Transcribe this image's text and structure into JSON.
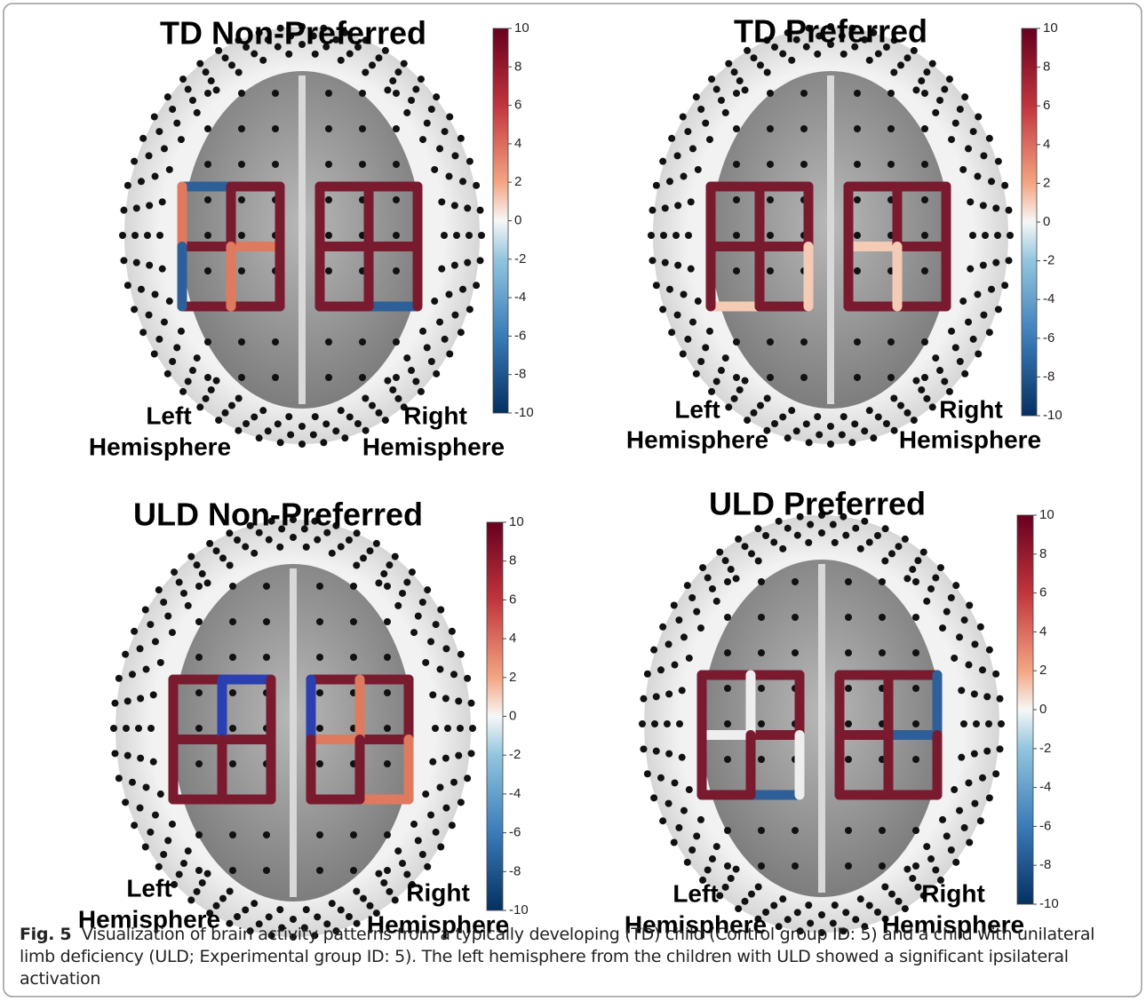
{
  "panels": [
    {
      "title": "TD Non-Preferred",
      "left_label": [
        "Left",
        "Hemisphere"
      ],
      "right_label": [
        "Right",
        "Hemisphere"
      ],
      "colorbar_ticks": [
        10,
        8,
        6,
        4,
        2,
        0,
        -2,
        -4,
        -6,
        -8,
        -10
      ]
    },
    {
      "title": "TD Preferred",
      "left_label": [
        "Left",
        "Hemisphere"
      ],
      "right_label": [
        "Right",
        "Hemisphere"
      ],
      "colorbar_ticks": [
        10,
        8,
        6,
        4,
        2,
        0,
        -2,
        -4,
        -6,
        -8,
        -10
      ]
    },
    {
      "title": "ULD Non-Preferred",
      "left_label": [
        "Left",
        "Hemisphere"
      ],
      "right_label": [
        "Right",
        "Hemisphere"
      ],
      "colorbar_ticks": [
        10,
        8,
        6,
        4,
        2,
        0,
        -2,
        -4,
        -6,
        -8,
        -10
      ]
    },
    {
      "title": "ULD Preferred",
      "left_label": [
        "Left",
        "Hemisphere"
      ],
      "right_label": [
        "Right",
        "Hemisphere"
      ],
      "colorbar_ticks": [
        10,
        8,
        6,
        4,
        2,
        0,
        -2,
        -4,
        -6,
        -8,
        -10
      ]
    }
  ],
  "caption": {
    "label": "Fig. 5",
    "text": "Visualization of brain activity patterns from a typically developing (TD) child (Control group ID: 5) and a child with unilateral limb deficiency (ULD; Experimental group ID: 5). The left hemisphere from the children with ULD showed a significant ipsilateral activation"
  }
}
